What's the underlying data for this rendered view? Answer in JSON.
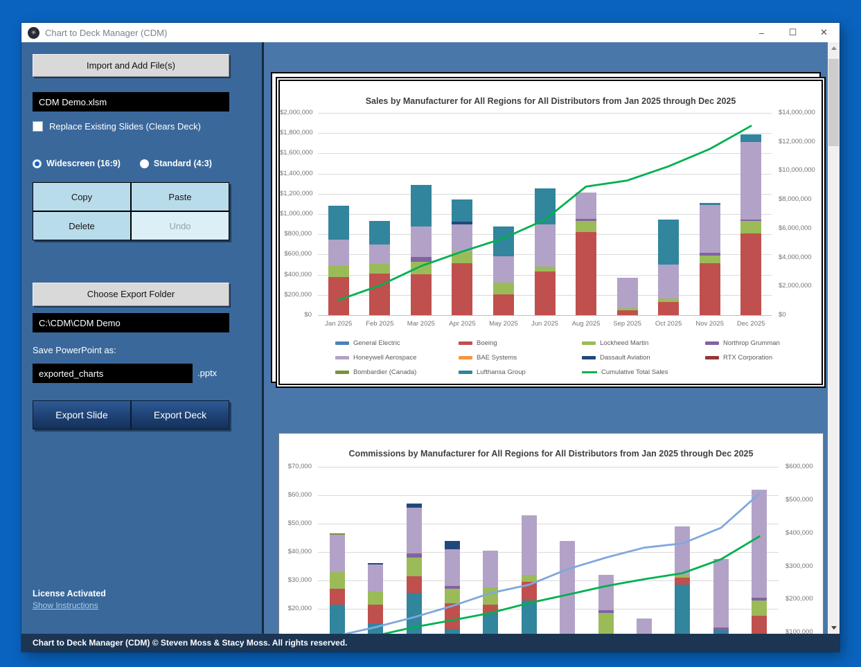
{
  "window": {
    "title": "Chart to Deck Manager (CDM)",
    "controls": {
      "minimize": "–",
      "maximize": "☐",
      "close": "✕"
    }
  },
  "sidebar": {
    "import_button": "Import and Add File(s)",
    "file_field": "CDM Demo.xlsm",
    "replace_checkbox_label": "Replace Existing Slides (Clears Deck)",
    "radio_widescreen": "Widescreen (16:9)",
    "radio_standard": "Standard (4:3)",
    "copy": "Copy",
    "paste": "Paste",
    "delete": "Delete",
    "undo": "Undo",
    "choose_export_folder": "Choose Export Folder",
    "export_path": "C:\\CDM\\CDM Demo",
    "save_as_label": "Save PowerPoint as:",
    "save_name": "exported_charts",
    "save_ext": ".pptx",
    "export_slide": "Export Slide",
    "export_deck": "Export Deck",
    "license_status": "License Activated",
    "instructions_link": "Show Instructions"
  },
  "footer": {
    "text": "Chart to Deck Manager (CDM) © Steven Moss & Stacy Moss. All rights reserved."
  },
  "chart_data": [
    {
      "type": "bar",
      "subtype": "stacked-column-with-line",
      "title": "Sales by Manufacturer for All Regions for All Distributors from Jan 2025 through Dec 2025",
      "categories": [
        "Jan 2025",
        "Feb 2025",
        "Mar 2025",
        "Apr 2025",
        "May 2025",
        "Jun 2025",
        "Aug 2025",
        "Sep 2025",
        "Oct 2025",
        "Nov 2025",
        "Dec 2025"
      ],
      "categories_visible": true,
      "axes": {
        "left": {
          "min": 0,
          "max": 2000000,
          "step": 200000
        },
        "right": {
          "min": 0,
          "max": 14000000,
          "step": 2000000
        }
      },
      "series": [
        {
          "name": "General Electric",
          "color": "#4F81BD",
          "values": [
            0,
            0,
            0,
            0,
            0,
            0,
            0,
            0,
            0,
            0,
            0
          ]
        },
        {
          "name": "Boeing",
          "color": "#C0504D",
          "values": [
            375000,
            410000,
            405000,
            515000,
            205000,
            430000,
            820000,
            45000,
            130000,
            515000,
            810000
          ]
        },
        {
          "name": "Lockheed Martin",
          "color": "#9BBB59",
          "values": [
            120000,
            95000,
            125000,
            105000,
            115000,
            50000,
            115000,
            25000,
            35000,
            75000,
            120000
          ]
        },
        {
          "name": "Northrop Grumman",
          "color": "#8064A2",
          "values": [
            0,
            0,
            45000,
            0,
            0,
            0,
            20000,
            0,
            0,
            25000,
            15000
          ]
        },
        {
          "name": "Honeywell Aerospace",
          "color": "#B3A2C7",
          "values": [
            250000,
            195000,
            305000,
            275000,
            265000,
            415000,
            260000,
            300000,
            335000,
            475000,
            765000
          ]
        },
        {
          "name": "BAE Systems",
          "color": "#F79646",
          "values": [
            0,
            0,
            0,
            0,
            0,
            0,
            0,
            0,
            0,
            0,
            0
          ]
        },
        {
          "name": "Dassault Aviation",
          "color": "#1F497D",
          "values": [
            0,
            0,
            0,
            30000,
            0,
            0,
            0,
            0,
            0,
            0,
            0
          ]
        },
        {
          "name": "RTX Corporation",
          "color": "#953735",
          "values": [
            0,
            0,
            0,
            0,
            0,
            0,
            0,
            0,
            0,
            0,
            0
          ]
        },
        {
          "name": "Bombardier (Canada)",
          "color": "#77933C",
          "values": [
            0,
            0,
            0,
            0,
            0,
            0,
            0,
            0,
            0,
            0,
            0
          ]
        },
        {
          "name": "Lufthansa Group",
          "color": "#31859C",
          "values": [
            340000,
            230000,
            405000,
            220000,
            290000,
            360000,
            0,
            0,
            445000,
            20000,
            80000
          ]
        }
      ],
      "lines": [
        {
          "name": "Cumulative Total Sales",
          "color": "#00B050",
          "axis": "right",
          "values": [
            1050000,
            2050000,
            3400000,
            4400000,
            5320000,
            6600000,
            8900000,
            9320000,
            10300000,
            11500000,
            13100000
          ]
        }
      ],
      "legend": [
        {
          "label": "General Electric",
          "color": "#4F81BD",
          "kind": "box"
        },
        {
          "label": "Boeing",
          "color": "#C0504D",
          "kind": "box"
        },
        {
          "label": "Lockheed Martin",
          "color": "#9BBB59",
          "kind": "box"
        },
        {
          "label": "Northrop Grumman",
          "color": "#8064A2",
          "kind": "box"
        },
        {
          "label": "Honeywell Aerospace",
          "color": "#B3A2C7",
          "kind": "box"
        },
        {
          "label": "BAE Systems",
          "color": "#F79646",
          "kind": "box"
        },
        {
          "label": "Dassault Aviation",
          "color": "#1F497D",
          "kind": "box"
        },
        {
          "label": "RTX Corporation",
          "color": "#953735",
          "kind": "box"
        },
        {
          "label": "Bombardier (Canada)",
          "color": "#77933C",
          "kind": "box"
        },
        {
          "label": "Lufthansa Group",
          "color": "#31859C",
          "kind": "box"
        },
        {
          "label": "Cumulative Total Sales",
          "color": "#00B050",
          "kind": "line"
        }
      ]
    },
    {
      "type": "bar",
      "subtype": "stacked-column-with-line",
      "title": "Commissions by Manufacturer for All Regions for All Distributors from Jan 2025 through Dec 2025",
      "categories": [
        "",
        "",
        "",
        "",
        "",
        "",
        "",
        "",
        "",
        "",
        "",
        ""
      ],
      "categories_visible": false,
      "axes": {
        "left": {
          "min": 0,
          "max": 70000,
          "step": 10000
        },
        "right": {
          "min": 0,
          "max": 600000,
          "step": 100000
        }
      },
      "series": [
        {
          "name": "Lufthansa Group",
          "color": "#31859C",
          "values": [
            21500,
            15000,
            25500,
            13000,
            18500,
            23000,
            0,
            0,
            0,
            28500,
            12500,
            0
          ]
        },
        {
          "name": "Boeing",
          "color": "#C0504D",
          "values": [
            5500,
            6500,
            6000,
            9000,
            3000,
            6500,
            0,
            0,
            0,
            2500,
            0,
            17500
          ]
        },
        {
          "name": "Lockheed Martin",
          "color": "#9BBB59",
          "values": [
            6000,
            4500,
            6500,
            5000,
            6000,
            2500,
            0,
            18500,
            0,
            1000,
            0,
            5500
          ]
        },
        {
          "name": "Northrop Grumman",
          "color": "#8064A2",
          "values": [
            0,
            0,
            1500,
            1000,
            0,
            0,
            1000,
            1000,
            0,
            0,
            1000,
            1000
          ]
        },
        {
          "name": "Honeywell Aerospace",
          "color": "#B3A2C7",
          "values": [
            13000,
            9500,
            16000,
            13000,
            13000,
            21000,
            43000,
            12500,
            16500,
            17000,
            24000,
            38000
          ]
        },
        {
          "name": "Dassault Aviation",
          "color": "#1F497D",
          "values": [
            0,
            500,
            1500,
            3000,
            0,
            0,
            0,
            0,
            0,
            0,
            0,
            0
          ]
        },
        {
          "name": "Bombardier (Canada)",
          "color": "#77933C",
          "values": [
            500,
            0,
            0,
            0,
            0,
            0,
            0,
            0,
            0,
            0,
            0,
            0
          ]
        }
      ],
      "lines": [
        {
          "name": "",
          "color": "#7FA8DC",
          "axis": "right",
          "values": [
            90000,
            116000,
            146000,
            180000,
            219000,
            244000,
            291000,
            326000,
            356000,
            369000,
            416000,
            519000
          ]
        },
        {
          "name": "",
          "color": "#00B050",
          "axis": "right",
          "values": [
            69000,
            90000,
            116000,
            137000,
            159000,
            189000,
            214000,
            240000,
            261000,
            279000,
            321000,
            390000
          ]
        }
      ],
      "legend": null
    }
  ]
}
